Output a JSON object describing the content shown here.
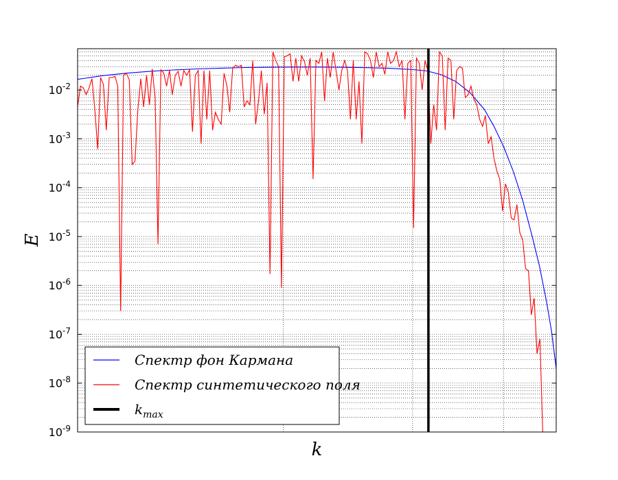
{
  "chart_data": {
    "type": "line",
    "title": "",
    "xlabel": "k",
    "ylabel": "E",
    "xscale": "log",
    "yscale": "log",
    "grid": true,
    "legend_position": "lower-left",
    "ylim": [
      1e-09,
      0.07
    ],
    "y_ticks": [
      {
        "value": 1e-09,
        "base": "10",
        "exp": "-9"
      },
      {
        "value": 1e-08,
        "base": "10",
        "exp": "-8"
      },
      {
        "value": 1e-07,
        "base": "10",
        "exp": "-7"
      },
      {
        "value": 1e-06,
        "base": "10",
        "exp": "-6"
      },
      {
        "value": 1e-05,
        "base": "10",
        "exp": "-5"
      },
      {
        "value": 0.0001,
        "base": "10",
        "exp": "-4"
      },
      {
        "value": 0.001,
        "base": "10",
        "exp": "-3"
      },
      {
        "value": 0.01,
        "base": "10",
        "exp": "-2"
      }
    ],
    "kmax_position": 0.733,
    "series": [
      {
        "name": "Спектр фон Кармана",
        "color": "#0000ff",
        "style": "line",
        "points": [
          [
            0.0,
            0.0165
          ],
          [
            0.05,
            0.0195
          ],
          [
            0.1,
            0.022
          ],
          [
            0.15,
            0.024
          ],
          [
            0.2,
            0.0257
          ],
          [
            0.25,
            0.027
          ],
          [
            0.3,
            0.028
          ],
          [
            0.35,
            0.0288
          ],
          [
            0.4,
            0.0292
          ],
          [
            0.45,
            0.0294
          ],
          [
            0.5,
            0.0294
          ],
          [
            0.55,
            0.0292
          ],
          [
            0.6,
            0.0287
          ],
          [
            0.65,
            0.0278
          ],
          [
            0.7,
            0.0262
          ],
          [
            0.73,
            0.0245
          ],
          [
            0.76,
            0.0205
          ],
          [
            0.79,
            0.015
          ],
          [
            0.82,
            0.0088
          ],
          [
            0.85,
            0.004
          ],
          [
            0.87,
            0.0018
          ],
          [
            0.89,
            0.0007
          ],
          [
            0.91,
            0.00022
          ],
          [
            0.93,
            5.5e-05
          ],
          [
            0.95,
            1e-05
          ],
          [
            0.965,
            2.5e-06
          ],
          [
            0.98,
            4.5e-07
          ],
          [
            0.99,
            1.2e-07
          ],
          [
            1.0,
            2e-08
          ]
        ]
      },
      {
        "name": "Спектр синтетического поля",
        "color": "#ff0000",
        "style": "line",
        "points": [
          [
            0.0,
            0.0045
          ],
          [
            0.006,
            0.012
          ],
          [
            0.012,
            0.011
          ],
          [
            0.018,
            0.008
          ],
          [
            0.024,
            0.011
          ],
          [
            0.03,
            0.017
          ],
          [
            0.036,
            0.004
          ],
          [
            0.042,
            0.00062
          ],
          [
            0.048,
            0.018
          ],
          [
            0.054,
            0.013
          ],
          [
            0.06,
            0.0015
          ],
          [
            0.066,
            0.018
          ],
          [
            0.072,
            0.018
          ],
          [
            0.078,
            0.019
          ],
          [
            0.084,
            0.012
          ],
          [
            0.09,
            3e-07
          ],
          [
            0.096,
            0.02
          ],
          [
            0.102,
            0.022
          ],
          [
            0.108,
            0.016
          ],
          [
            0.114,
            0.0003
          ],
          [
            0.12,
            0.00035
          ],
          [
            0.126,
            0.004
          ],
          [
            0.132,
            0.017
          ],
          [
            0.138,
            0.0045
          ],
          [
            0.144,
            0.02
          ],
          [
            0.15,
            0.005
          ],
          [
            0.156,
            0.027
          ],
          [
            0.162,
            0.007
          ],
          [
            0.168,
            7e-06
          ],
          [
            0.174,
            0.026
          ],
          [
            0.18,
            0.022
          ],
          [
            0.186,
            0.012
          ],
          [
            0.192,
            0.025
          ],
          [
            0.198,
            0.008
          ],
          [
            0.204,
            0.02
          ],
          [
            0.21,
            0.024
          ],
          [
            0.216,
            0.012
          ],
          [
            0.222,
            0.025
          ],
          [
            0.228,
            0.02
          ],
          [
            0.234,
            0.026
          ],
          [
            0.24,
            0.0014
          ],
          [
            0.246,
            0.02
          ],
          [
            0.252,
            0.025
          ],
          [
            0.258,
            0.0008
          ],
          [
            0.264,
            0.025
          ],
          [
            0.27,
            0.0025
          ],
          [
            0.276,
            0.025
          ],
          [
            0.282,
            0.0015
          ],
          [
            0.288,
            0.0035
          ],
          [
            0.294,
            0.0025
          ],
          [
            0.3,
            0.002
          ],
          [
            0.306,
            0.022
          ],
          [
            0.312,
            0.012
          ],
          [
            0.318,
            0.0035
          ],
          [
            0.324,
            0.028
          ],
          [
            0.33,
            0.032
          ],
          [
            0.336,
            0.03
          ],
          [
            0.342,
            0.032
          ],
          [
            0.348,
            0.0045
          ],
          [
            0.354,
            0.006
          ],
          [
            0.36,
            0.005
          ],
          [
            0.366,
            0.04
          ],
          [
            0.372,
            0.002
          ],
          [
            0.378,
            0.006
          ],
          [
            0.384,
            0.025
          ],
          [
            0.39,
            0.0032
          ],
          [
            0.396,
            0.014
          ],
          [
            0.402,
            1.7e-06
          ],
          [
            0.408,
            0.06
          ],
          [
            0.414,
            0.04
          ],
          [
            0.42,
            0.03
          ],
          [
            0.426,
            9e-07
          ],
          [
            0.432,
            0.048
          ],
          [
            0.438,
            0.05
          ],
          [
            0.444,
            0.055
          ],
          [
            0.45,
            0.015
          ],
          [
            0.456,
            0.045
          ],
          [
            0.462,
            0.015
          ],
          [
            0.468,
            0.05
          ],
          [
            0.474,
            0.038
          ],
          [
            0.48,
            0.02
          ],
          [
            0.486,
            0.045
          ],
          [
            0.492,
            0.00015
          ],
          [
            0.498,
            0.04
          ],
          [
            0.504,
            0.035
          ],
          [
            0.51,
            0.06
          ],
          [
            0.516,
            0.006
          ],
          [
            0.522,
            0.045
          ],
          [
            0.528,
            0.018
          ],
          [
            0.534,
            0.06
          ],
          [
            0.54,
            0.025
          ],
          [
            0.546,
            0.01
          ],
          [
            0.552,
            0.025
          ],
          [
            0.558,
            0.04
          ],
          [
            0.564,
            0.025
          ],
          [
            0.57,
            0.0025
          ],
          [
            0.576,
            0.04
          ],
          [
            0.582,
            0.0025
          ],
          [
            0.588,
            0.015
          ],
          [
            0.594,
            0.0008
          ],
          [
            0.6,
            0.06
          ],
          [
            0.606,
            0.055
          ],
          [
            0.612,
            0.04
          ],
          [
            0.618,
            0.018
          ],
          [
            0.624,
            0.06
          ],
          [
            0.63,
            0.03
          ],
          [
            0.636,
            0.035
          ],
          [
            0.642,
            0.021
          ],
          [
            0.648,
            0.06
          ],
          [
            0.654,
            0.035
          ],
          [
            0.66,
            0.04
          ],
          [
            0.666,
            0.06
          ],
          [
            0.672,
            0.03
          ],
          [
            0.678,
            0.04
          ],
          [
            0.684,
            0.0025
          ],
          [
            0.69,
            0.035
          ],
          [
            0.696,
            0.04
          ],
          [
            0.702,
            1.5e-05
          ],
          [
            0.708,
            0.045
          ],
          [
            0.714,
            0.035
          ],
          [
            0.72,
            0.01
          ],
          [
            0.726,
            0.04
          ],
          [
            0.732,
            0.025
          ],
          [
            0.738,
            0.0008
          ],
          [
            0.744,
            0.005
          ],
          [
            0.75,
            0.0015
          ],
          [
            0.756,
            0.06
          ],
          [
            0.762,
            0.05
          ],
          [
            0.768,
            0.0015
          ],
          [
            0.774,
            0.045
          ],
          [
            0.78,
            0.04
          ],
          [
            0.786,
            0.0025
          ],
          [
            0.792,
            0.025
          ],
          [
            0.798,
            0.03
          ],
          [
            0.804,
            0.028
          ],
          [
            0.81,
            0.007
          ],
          [
            0.816,
            0.008
          ],
          [
            0.822,
            0.012
          ],
          [
            0.828,
            0.0065
          ],
          [
            0.834,
            0.005
          ],
          [
            0.84,
            0.0025
          ],
          [
            0.846,
            0.0018
          ],
          [
            0.852,
            0.003
          ],
          [
            0.858,
            0.0008
          ],
          [
            0.864,
            0.0011
          ],
          [
            0.87,
            0.0004
          ],
          [
            0.876,
            0.00022
          ],
          [
            0.882,
            0.00015
          ],
          [
            0.888,
            3.3e-05
          ],
          [
            0.894,
            0.00012
          ],
          [
            0.9,
            8e-05
          ],
          [
            0.906,
            2.4e-05
          ],
          [
            0.912,
            2.2e-05
          ],
          [
            0.918,
            4.5e-05
          ],
          [
            0.924,
            1.2e-05
          ],
          [
            0.93,
            8.5e-06
          ],
          [
            0.936,
            2.2e-06
          ],
          [
            0.942,
            2e-06
          ],
          [
            0.948,
            2.5e-07
          ],
          [
            0.954,
            5.5e-07
          ],
          [
            0.96,
            4e-08
          ],
          [
            0.966,
            8e-08
          ],
          [
            0.972,
            9e-10
          ],
          [
            0.978,
            8e-10
          ]
        ]
      },
      {
        "name": "k",
        "name_subscript": "max",
        "color": "#000000",
        "style": "vline"
      }
    ]
  }
}
